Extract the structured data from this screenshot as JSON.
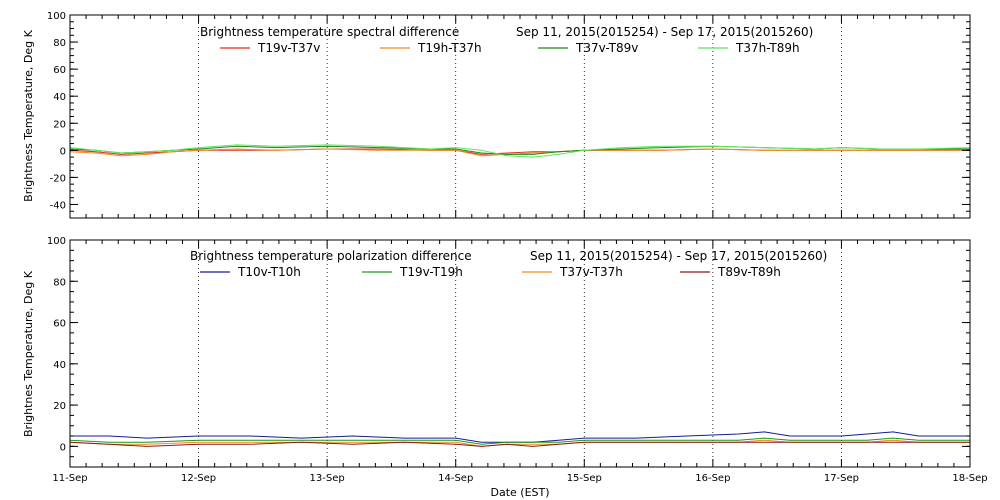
{
  "chart_data": [
    {
      "type": "line",
      "title": "Brightness temperature spectral difference",
      "date_range": "Sep 11, 2015(2015254) - Sep 17, 2015(2015260)",
      "ylabel": "Brightness Temperature, Deg K",
      "xlabel": "",
      "ylim": [
        -50,
        100
      ],
      "yticks": [
        -40,
        -20,
        0,
        20,
        40,
        60,
        80,
        100
      ],
      "xlim": [
        0,
        7
      ],
      "grid": true,
      "legend_position": "top",
      "series": [
        {
          "name": "T19v-T37v",
          "color": "#e8291c",
          "x": [
            0,
            0.2,
            0.4,
            0.6,
            0.8,
            1.0,
            1.3,
            1.6,
            2.0,
            2.4,
            2.8,
            3.0,
            3.2,
            3.4,
            3.6,
            3.8,
            4.0,
            4.3,
            4.6,
            5.0,
            5.4,
            5.8,
            6.0,
            6.3,
            6.6,
            7.0
          ],
          "values": [
            0,
            -1,
            -3,
            -2,
            -1,
            0,
            0,
            0,
            1,
            1,
            0,
            0,
            -3,
            -2,
            -1,
            -1,
            0,
            0,
            0,
            1,
            0,
            0,
            0,
            0,
            0,
            0
          ]
        },
        {
          "name": "T19h-T37h",
          "color": "#f08a1c",
          "x": [
            0,
            0.2,
            0.4,
            0.6,
            0.8,
            1.0,
            1.3,
            1.6,
            2.0,
            2.4,
            2.8,
            3.0,
            3.2,
            3.4,
            3.6,
            3.8,
            4.0,
            4.3,
            4.6,
            5.0,
            5.4,
            5.8,
            6.0,
            6.3,
            6.6,
            7.0
          ],
          "values": [
            -1,
            -2,
            -4,
            -3,
            -1,
            0,
            1,
            0,
            1,
            0,
            0,
            0,
            -4,
            -3,
            -2,
            -1,
            0,
            0,
            0,
            1,
            0,
            0,
            0,
            0,
            0,
            0
          ]
        },
        {
          "name": "T37v-T89v",
          "color": "#1a8a1a",
          "x": [
            0,
            0.2,
            0.4,
            0.6,
            0.8,
            1.0,
            1.3,
            1.6,
            2.0,
            2.4,
            2.8,
            3.0,
            3.2,
            3.4,
            3.6,
            3.8,
            4.0,
            4.3,
            4.6,
            5.0,
            5.4,
            5.8,
            6.0,
            6.3,
            6.6,
            7.0
          ],
          "values": [
            1,
            0,
            -2,
            -1,
            0,
            1,
            3,
            2,
            3,
            2,
            1,
            1,
            -2,
            -3,
            -3,
            -1,
            0,
            1,
            2,
            3,
            2,
            1,
            2,
            1,
            1,
            1
          ]
        },
        {
          "name": "T37h-T89h",
          "color": "#5ce65c",
          "x": [
            0,
            0.2,
            0.4,
            0.6,
            0.8,
            1.0,
            1.3,
            1.6,
            2.0,
            2.4,
            2.8,
            3.0,
            3.2,
            3.4,
            3.6,
            3.8,
            4.0,
            4.3,
            4.6,
            5.0,
            5.4,
            5.8,
            6.0,
            6.3,
            6.6,
            7.0
          ],
          "values": [
            2,
            0,
            -2,
            -1,
            0,
            2,
            4,
            3,
            4,
            3,
            1,
            2,
            0,
            -4,
            -5,
            -3,
            0,
            2,
            3,
            3,
            2,
            1,
            2,
            1,
            1,
            2
          ]
        }
      ]
    },
    {
      "type": "line",
      "title": "Brightness temperature polarization difference",
      "date_range": "Sep 11, 2015(2015254) - Sep 17, 2015(2015260)",
      "ylabel": "Brightnes Temperature, Deg K",
      "xlabel": "Date (EST)",
      "ylim": [
        -10,
        100
      ],
      "yticks": [
        0,
        20,
        40,
        60,
        80,
        100
      ],
      "xlim": [
        0,
        7
      ],
      "xticks": [
        "11-Sep",
        "12-Sep",
        "13-Sep",
        "14-Sep",
        "15-Sep",
        "16-Sep",
        "17-Sep",
        "18-Sep"
      ],
      "grid": true,
      "legend_position": "top",
      "series": [
        {
          "name": "T10v-T10h",
          "color": "#1a1a9a",
          "x": [
            0,
            0.3,
            0.6,
            1.0,
            1.4,
            1.8,
            2.2,
            2.6,
            3.0,
            3.2,
            3.4,
            3.6,
            3.8,
            4.0,
            4.4,
            4.8,
            5.2,
            5.4,
            5.6,
            5.8,
            6.0,
            6.2,
            6.4,
            6.6,
            7.0
          ],
          "values": [
            5,
            5,
            4,
            5,
            5,
            4,
            5,
            4,
            4,
            2,
            2,
            2,
            3,
            4,
            4,
            5,
            6,
            7,
            5,
            5,
            5,
            6,
            7,
            5,
            5
          ]
        },
        {
          "name": "T19v-T19h",
          "color": "#1a9a1a",
          "x": [
            0,
            0.3,
            0.6,
            1.0,
            1.4,
            1.8,
            2.2,
            2.6,
            3.0,
            3.2,
            3.4,
            3.6,
            3.8,
            4.0,
            4.4,
            4.8,
            5.2,
            5.4,
            5.6,
            5.8,
            6.0,
            6.2,
            6.4,
            6.6,
            7.0
          ],
          "values": [
            3,
            2,
            2,
            3,
            3,
            3,
            3,
            3,
            3,
            1,
            2,
            2,
            2,
            3,
            3,
            3,
            3,
            4,
            3,
            3,
            3,
            3,
            4,
            3,
            3
          ]
        },
        {
          "name": "T37v-T37h",
          "color": "#f08a1c",
          "x": [
            0,
            0.3,
            0.6,
            1.0,
            1.4,
            1.8,
            2.2,
            2.6,
            3.0,
            3.2,
            3.4,
            3.6,
            3.8,
            4.0,
            4.4,
            4.8,
            5.2,
            5.4,
            5.6,
            5.8,
            6.0,
            6.2,
            6.4,
            6.6,
            7.0
          ],
          "values": [
            2,
            1,
            1,
            2,
            2,
            2,
            2,
            2,
            2,
            0,
            1,
            1,
            1,
            2,
            2,
            2,
            2,
            3,
            2,
            2,
            2,
            2,
            3,
            2,
            2
          ]
        },
        {
          "name": "T89v-T89h",
          "color": "#8a1a1a",
          "x": [
            0,
            0.3,
            0.6,
            1.0,
            1.4,
            1.8,
            2.2,
            2.6,
            3.0,
            3.2,
            3.4,
            3.6,
            3.8,
            4.0,
            4.4,
            4.8,
            5.2,
            5.4,
            5.6,
            5.8,
            6.0,
            6.2,
            6.4,
            6.6,
            7.0
          ],
          "values": [
            2,
            1,
            0,
            1,
            1,
            2,
            1,
            2,
            1,
            0,
            1,
            0,
            1,
            2,
            2,
            2,
            2,
            2,
            2,
            2,
            2,
            2,
            2,
            2,
            2
          ]
        }
      ]
    }
  ]
}
